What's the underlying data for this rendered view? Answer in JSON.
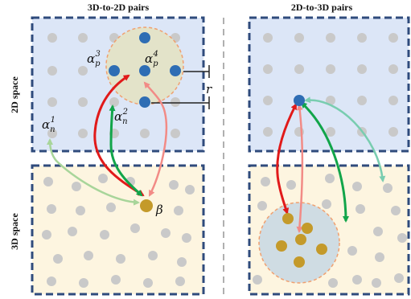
{
  "titles": {
    "left": "3D-to-2D pairs",
    "right": "2D-to-3D pairs"
  },
  "side_labels": {
    "top": "2D space",
    "bottom": "3D space"
  },
  "labels": {
    "alpha_p3": {
      "symbol": "α",
      "sub": "p",
      "sup": "3"
    },
    "alpha_p4": {
      "symbol": "α",
      "sub": "p",
      "sup": "4"
    },
    "alpha_n1": {
      "symbol": "α",
      "sub": "n",
      "sup": "1"
    },
    "alpha_n2": {
      "symbol": "α",
      "sub": "n",
      "sup": "2"
    },
    "beta": "β",
    "radius": "r"
  },
  "colors": {
    "panel_2d_fill": "#dce6f7",
    "panel_3d_fill": "#fdf5e0",
    "panel_border": "#2f4b7c",
    "grey_point": "#c9c9c9",
    "blue_point": "#2e6db4",
    "gold_point": "#c49a2a",
    "circle_fill_2d": "#e3e3c9",
    "circle_fill_3d": "#cfdce3",
    "circle_stroke": "#f0a070",
    "arrow_red": "#e11a1a",
    "arrow_green": "#12a54a",
    "arrow_pink": "#f28b86",
    "arrow_lightgreen": "#a8d59a",
    "arrow_teal": "#79cdb0",
    "divider": "#b0b0b0"
  }
}
